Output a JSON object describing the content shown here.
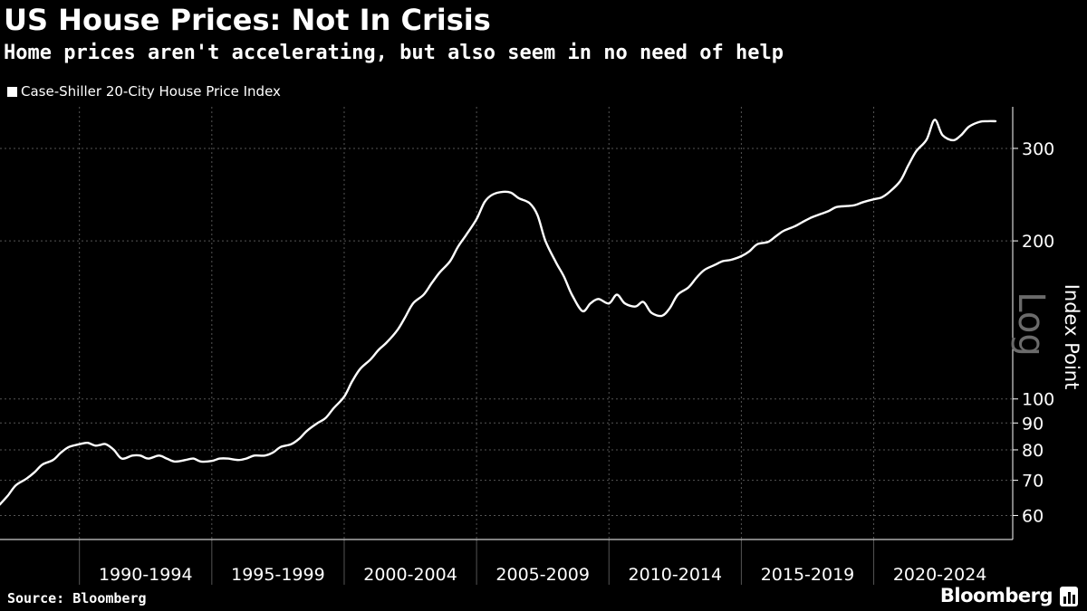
{
  "header": {
    "title": "US House Prices: Not In Crisis",
    "subtitle": "Home prices aren't accelerating, but also seem in no need of help"
  },
  "footer": {
    "source": "Source: Bloomberg",
    "brand": "Bloomberg"
  },
  "colors": {
    "background": "#000000",
    "line": "#ffffff",
    "grid": "#555555",
    "axis": "#ffffff",
    "watermark": "#6b6b6b"
  },
  "chart_data": {
    "type": "line",
    "title": "US House Prices: Not In Crisis",
    "subtitle": "Home prices aren't accelerating, but also seem in no need of help",
    "scale": "log",
    "scale_label": "Log",
    "ylabel": "Index Point",
    "xlabel": "",
    "ylim": [
      54,
      360
    ],
    "xlim": [
      1987.0,
      2025.25
    ],
    "legend": {
      "position": "top-left",
      "entries": [
        "Case-Shiller 20-City House Price Index"
      ]
    },
    "grid": true,
    "y_ticks": [
      {
        "value": 60,
        "label": "60"
      },
      {
        "value": 70,
        "label": "70"
      },
      {
        "value": 80,
        "label": "80"
      },
      {
        "value": 90,
        "label": "90"
      },
      {
        "value": 100,
        "label": "100"
      },
      {
        "value": 200,
        "label": "200"
      },
      {
        "value": 300,
        "label": "300"
      }
    ],
    "x_grid": [
      1990,
      1995,
      2000,
      2005,
      2010,
      2015,
      2020
    ],
    "x_ticks": [
      {
        "from": 1990,
        "to": 1995,
        "label": "1990-1994"
      },
      {
        "from": 1995,
        "to": 2000,
        "label": "1995-1999"
      },
      {
        "from": 2000,
        "to": 2005,
        "label": "2000-2004"
      },
      {
        "from": 2005,
        "to": 2010,
        "label": "2005-2009"
      },
      {
        "from": 2010,
        "to": 2015,
        "label": "2010-2014"
      },
      {
        "from": 2015,
        "to": 2020,
        "label": "2015-2019"
      },
      {
        "from": 2020,
        "to": 2025,
        "label": "2020-2024"
      }
    ],
    "series": [
      {
        "name": "Case-Shiller 20-City House Price Index",
        "x": [
          1987.0,
          1987.3,
          1987.6,
          1988.0,
          1988.3,
          1988.6,
          1989.0,
          1989.3,
          1989.6,
          1990.0,
          1990.3,
          1990.6,
          1990.8,
          1991.0,
          1991.3,
          1991.6,
          1992.0,
          1992.3,
          1992.6,
          1993.0,
          1993.3,
          1993.6,
          1994.0,
          1994.3,
          1994.6,
          1995.0,
          1995.3,
          1995.6,
          1996.0,
          1996.3,
          1996.6,
          1997.0,
          1997.3,
          1997.6,
          1998.0,
          1998.3,
          1998.6,
          1999.0,
          1999.3,
          1999.6,
          2000.0,
          2000.3,
          2000.6,
          2001.0,
          2001.3,
          2001.6,
          2002.0,
          2002.3,
          2002.6,
          2003.0,
          2003.3,
          2003.6,
          2004.0,
          2004.3,
          2004.6,
          2005.0,
          2005.3,
          2005.6,
          2006.0,
          2006.3,
          2006.6,
          2007.0,
          2007.3,
          2007.6,
          2008.0,
          2008.3,
          2008.6,
          2009.0,
          2009.3,
          2009.6,
          2010.0,
          2010.3,
          2010.6,
          2011.0,
          2011.3,
          2011.6,
          2012.0,
          2012.3,
          2012.6,
          2013.0,
          2013.3,
          2013.6,
          2014.0,
          2014.3,
          2014.6,
          2015.0,
          2015.3,
          2015.6,
          2016.0,
          2016.3,
          2016.6,
          2017.0,
          2017.3,
          2017.6,
          2018.0,
          2018.3,
          2018.6,
          2019.0,
          2019.3,
          2019.6,
          2020.0,
          2020.3,
          2020.6,
          2021.0,
          2021.3,
          2021.6,
          2022.0,
          2022.3,
          2022.6,
          2023.0,
          2023.3,
          2023.6,
          2024.0,
          2024.3,
          2024.6
        ],
        "values": [
          63,
          65.5,
          68.5,
          70.5,
          72.5,
          75,
          76.5,
          79,
          81,
          82,
          82.5,
          81.5,
          81.8,
          82,
          80,
          77,
          78,
          78,
          77,
          78,
          77,
          76,
          76.5,
          77,
          76,
          76.2,
          77,
          77,
          76.5,
          77,
          78,
          78,
          79,
          81,
          82,
          84,
          87,
          90,
          92,
          96,
          101,
          108,
          114,
          119,
          124,
          128,
          135,
          143,
          152,
          158,
          166,
          174,
          183,
          195,
          205,
          220,
          237,
          245,
          248,
          247,
          241,
          236,
          224,
          200,
          182,
          171,
          158,
          147,
          152,
          155,
          152,
          158,
          152,
          150,
          153,
          146,
          144,
          149,
          158,
          163,
          170,
          176,
          180,
          183,
          184,
          187,
          191,
          197,
          199,
          204,
          209,
          213,
          217,
          221,
          225,
          228,
          232,
          233,
          234,
          237,
          240,
          242,
          248,
          260,
          278,
          296,
          312,
          340,
          318,
          311,
          318,
          330,
          337,
          338,
          338
        ]
      }
    ]
  }
}
